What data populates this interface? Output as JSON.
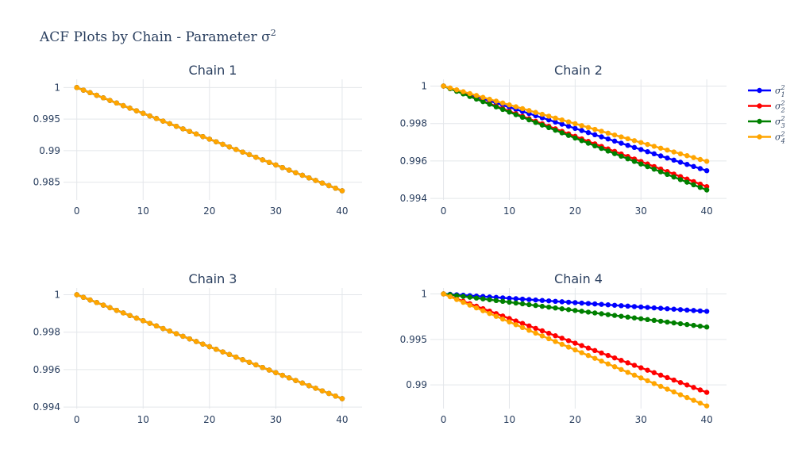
{
  "figure": {
    "title_main": "ACF Plots by Chain - Parameter σ",
    "title_sup": "2"
  },
  "legend": {
    "position": "top-right",
    "items": [
      {
        "base": "σ",
        "sup": "2",
        "sub": "1",
        "color": "#0000ff"
      },
      {
        "base": "σ",
        "sup": "2",
        "sub": "2",
        "color": "#ff0000"
      },
      {
        "base": "σ",
        "sup": "2",
        "sub": "3",
        "color": "#008000"
      },
      {
        "base": "σ",
        "sup": "2",
        "sub": "4",
        "color": "#ffa500"
      }
    ]
  },
  "chart_data": [
    {
      "type": "line",
      "title": "Chain 1",
      "x": [
        0,
        1,
        2,
        3,
        4,
        5,
        6,
        7,
        8,
        9,
        10,
        11,
        12,
        13,
        14,
        15,
        16,
        17,
        18,
        19,
        20,
        21,
        22,
        23,
        24,
        25,
        26,
        27,
        28,
        29,
        30,
        31,
        32,
        33,
        34,
        35,
        36,
        37,
        38,
        39,
        40
      ],
      "xlim": [
        -2,
        43
      ],
      "ylim": [
        0.9822,
        1.0013
      ],
      "xticks": [
        0,
        10,
        20,
        30,
        40
      ],
      "yticks": [
        0.985,
        0.99,
        0.995,
        1
      ],
      "ytick_labels": [
        "0.985",
        "0.99",
        "0.995",
        "1"
      ],
      "grid": true,
      "series": [
        {
          "color": "#0000ff",
          "start": 1,
          "end": 0.98365
        },
        {
          "color": "#ff0000",
          "start": 1,
          "end": 0.98365
        },
        {
          "color": "#008000",
          "start": 1,
          "end": 0.98365
        },
        {
          "color": "#ffa500",
          "start": 1,
          "end": 0.98365
        }
      ]
    },
    {
      "type": "line",
      "title": "Chain 2",
      "x": [
        0,
        1,
        2,
        3,
        4,
        5,
        6,
        7,
        8,
        9,
        10,
        11,
        12,
        13,
        14,
        15,
        16,
        17,
        18,
        19,
        20,
        21,
        22,
        23,
        24,
        25,
        26,
        27,
        28,
        29,
        30,
        31,
        32,
        33,
        34,
        35,
        36,
        37,
        38,
        39,
        40
      ],
      "xlim": [
        -2,
        43
      ],
      "ylim": [
        0.99392,
        1.00036
      ],
      "xticks": [
        0,
        10,
        20,
        30,
        40
      ],
      "yticks": [
        0.994,
        0.996,
        0.998,
        1
      ],
      "ytick_labels": [
        "0.994",
        "0.996",
        "0.998",
        "1"
      ],
      "grid": true,
      "series": [
        {
          "color": "#0000ff",
          "start": 1,
          "end": 0.99548
        },
        {
          "color": "#ff0000",
          "start": 1,
          "end": 0.99463
        },
        {
          "color": "#008000",
          "start": 1,
          "end": 0.99445
        },
        {
          "color": "#ffa500",
          "start": 1,
          "end": 0.99598
        }
      ]
    },
    {
      "type": "line",
      "title": "Chain 3",
      "x": [
        0,
        1,
        2,
        3,
        4,
        5,
        6,
        7,
        8,
        9,
        10,
        11,
        12,
        13,
        14,
        15,
        16,
        17,
        18,
        19,
        20,
        21,
        22,
        23,
        24,
        25,
        26,
        27,
        28,
        29,
        30,
        31,
        32,
        33,
        34,
        35,
        36,
        37,
        38,
        39,
        40
      ],
      "xlim": [
        -2,
        43
      ],
      "ylim": [
        0.99392,
        1.00036
      ],
      "xticks": [
        0,
        10,
        20,
        30,
        40
      ],
      "yticks": [
        0.994,
        0.996,
        0.998,
        1
      ],
      "ytick_labels": [
        "0.994",
        "0.996",
        "0.998",
        "1"
      ],
      "grid": true,
      "series": [
        {
          "color": "#0000ff",
          "start": 1,
          "end": 0.99445
        },
        {
          "color": "#ff0000",
          "start": 1,
          "end": 0.99445
        },
        {
          "color": "#008000",
          "start": 1,
          "end": 0.99445
        },
        {
          "color": "#ffa500",
          "start": 1,
          "end": 0.99445
        }
      ]
    },
    {
      "type": "line",
      "title": "Chain 4",
      "x": [
        0,
        1,
        2,
        3,
        4,
        5,
        6,
        7,
        8,
        9,
        10,
        11,
        12,
        13,
        14,
        15,
        16,
        17,
        18,
        19,
        20,
        21,
        22,
        23,
        24,
        25,
        26,
        27,
        28,
        29,
        30,
        31,
        32,
        33,
        34,
        35,
        36,
        37,
        38,
        39,
        40
      ],
      "xlim": [
        -2,
        43
      ],
      "ylim": [
        0.9874,
        1.00065
      ],
      "xticks": [
        0,
        10,
        20,
        30,
        40
      ],
      "yticks": [
        0.99,
        0.995,
        1
      ],
      "ytick_labels": [
        "0.99",
        "0.995",
        "1"
      ],
      "grid": true,
      "series": [
        {
          "color": "#0000ff",
          "start": 1,
          "end": 0.99808
        },
        {
          "color": "#ff0000",
          "start": 1,
          "end": 0.98918
        },
        {
          "color": "#008000",
          "start": 1,
          "end": 0.99636
        },
        {
          "color": "#ffa500",
          "start": 1,
          "end": 0.98769
        }
      ]
    }
  ]
}
